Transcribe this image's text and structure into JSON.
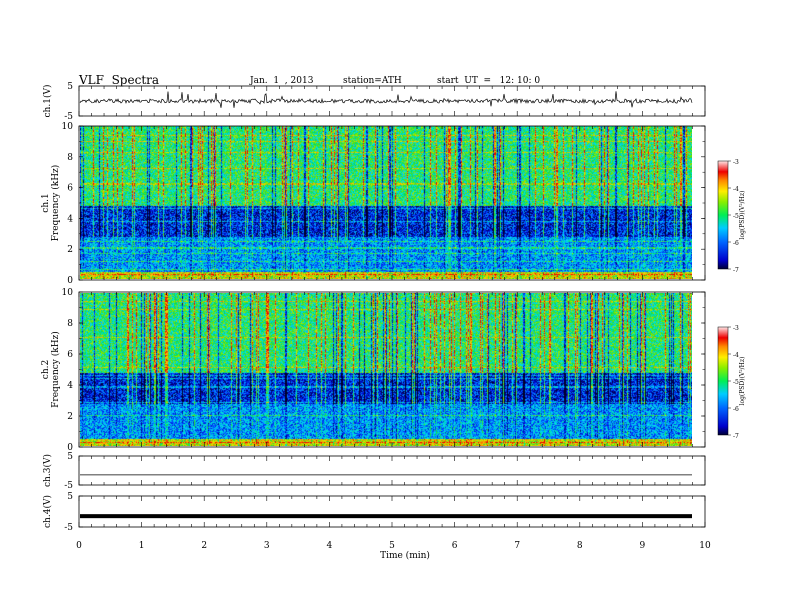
{
  "header": {
    "title": "VLF  Spectra",
    "date": "Jan.  1  , 2013",
    "station": "station=ATH",
    "start": "start  UT  =   12: 10: 0"
  },
  "chart_data": [
    {
      "type": "line",
      "name": "ch.1 waveform",
      "ylabel": "ch.1(V)",
      "ylim": [
        -5,
        5
      ],
      "yticks": [
        5,
        -5
      ],
      "xlim": [
        0,
        10
      ],
      "baseline": 0,
      "note": ""
    },
    {
      "type": "heatmap",
      "ylabel": "ch.1\nFrequency (kHz)",
      "ylabel_line1": "ch.1",
      "ylabel_line2": "Frequency  (kHz)",
      "ylim": [
        0,
        10
      ],
      "yticks": [
        0,
        2,
        4,
        6,
        8,
        10
      ],
      "xlim": [
        0,
        9.8
      ],
      "colorbar": {
        "label": "log(PSD)(V²/Hz)",
        "range": [
          -7,
          -3
        ],
        "ticks": [
          -3,
          -4,
          -5,
          -6,
          -7
        ]
      }
    },
    {
      "type": "heatmap",
      "ylabel_line1": "ch.2",
      "ylabel_line2": "Frequency  (kHz)",
      "ylim": [
        0,
        10
      ],
      "yticks": [
        0,
        2,
        4,
        6,
        8,
        10
      ],
      "xlim": [
        0,
        9.8
      ],
      "colorbar": {
        "label": "log(PSD)(V²/Hz)",
        "range": [
          -7,
          -3
        ],
        "ticks": [
          -3,
          -4,
          -5,
          -6,
          -7
        ]
      }
    },
    {
      "type": "line",
      "name": "ch.3 waveform",
      "ylabel": "ch.3(V)",
      "ylim": [
        -5,
        5
      ],
      "yticks": [
        5,
        -5
      ],
      "baseline": -1.5
    },
    {
      "type": "line",
      "name": "ch.4 waveform",
      "ylabel": "ch.4(V)",
      "ylim": [
        -5,
        5
      ],
      "yticks": [
        5,
        -5
      ],
      "baseline": -1.5
    }
  ],
  "xaxis": {
    "label": "Time  (min)",
    "ticks": [
      0,
      1,
      2,
      3,
      4,
      5,
      6,
      7,
      8,
      9,
      10
    ],
    "range": [
      0,
      10
    ]
  }
}
